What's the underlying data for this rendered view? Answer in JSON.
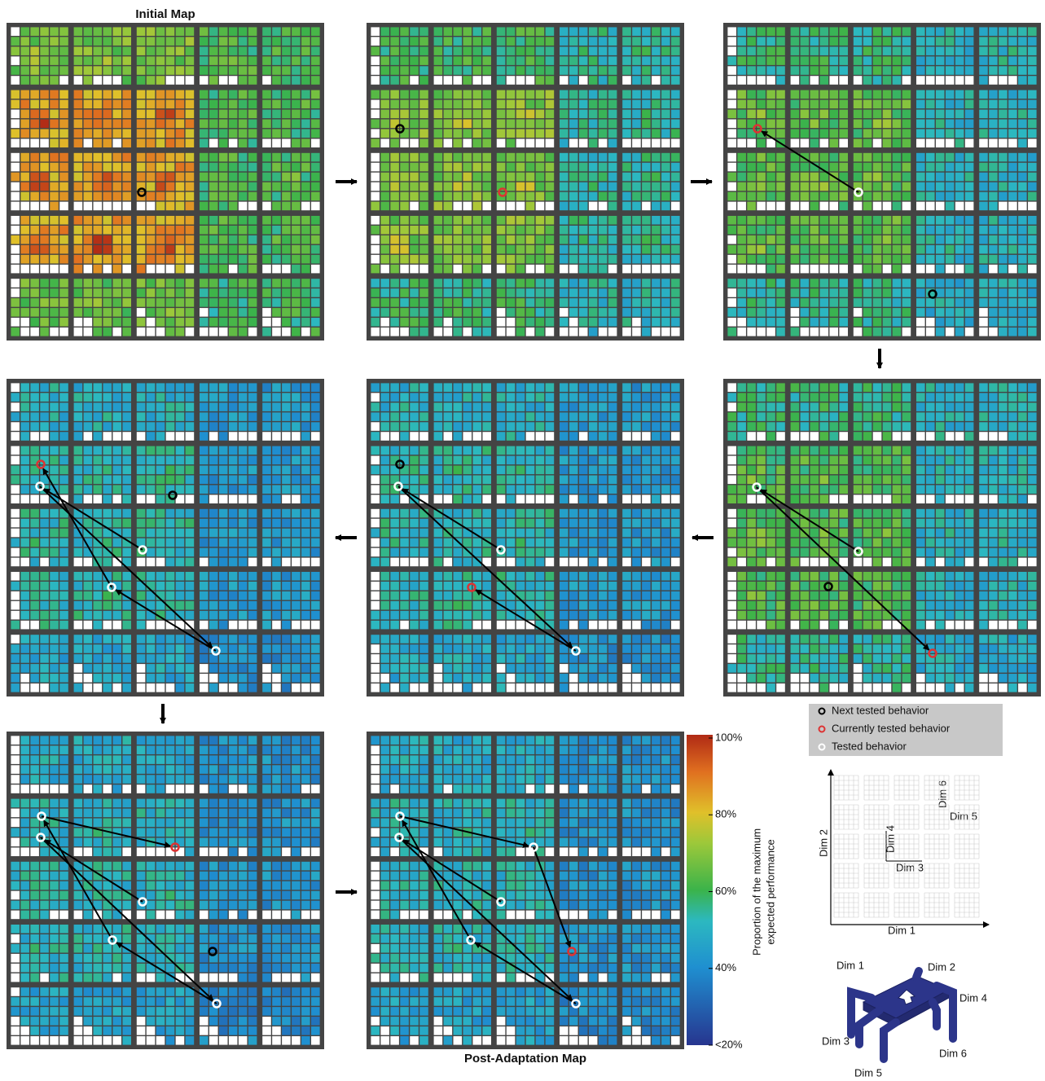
{
  "titles": {
    "initial": "Initial Map",
    "post": "Post-Adaptation Map"
  },
  "legend": [
    "Next tested behavior",
    "Currently tested behavior",
    "Tested behavior"
  ],
  "colorbar": {
    "label": [
      "Proportion of the maximum",
      "expected performance"
    ],
    "ticks": [
      {
        "value": 100,
        "label": "100%"
      },
      {
        "value": 80,
        "label": "80%"
      },
      {
        "value": 60,
        "label": "60%"
      },
      {
        "value": 40,
        "label": "40%"
      },
      {
        "value": 20,
        "label": "<20%"
      }
    ]
  },
  "behavior_space": {
    "x_label": "Dim 1",
    "y_label": "Dim 2",
    "inner": [
      "Dim 3",
      "Dim 4",
      "Dim 5",
      "Dim 6"
    ]
  },
  "robot": {
    "legs": [
      "Dim 1",
      "Dim 2",
      "Dim 3",
      "Dim 4",
      "Dim 5",
      "Dim 6"
    ]
  }
}
